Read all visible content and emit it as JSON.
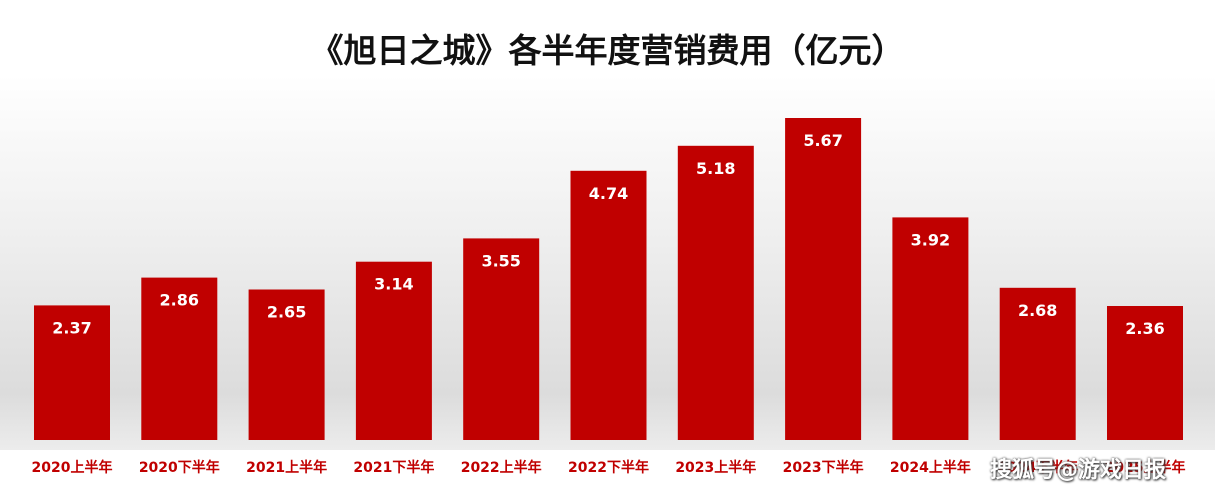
{
  "chart_data": {
    "type": "bar",
    "title": "《旭日之城》各半年度营销费用（亿元）",
    "categories": [
      "2020上半年",
      "2020下半年",
      "2021上半年",
      "2021下半年",
      "2022上半年",
      "2022下半年",
      "2023上半年",
      "2023下半年",
      "2024上半年",
      "2024下半年",
      "2025上半年"
    ],
    "values": [
      2.37,
      2.86,
      2.65,
      3.14,
      3.55,
      4.74,
      5.18,
      5.67,
      3.92,
      2.68,
      2.36
    ],
    "xlabel": "",
    "ylabel": "",
    "ylim": [
      0,
      5.67
    ],
    "grid": false,
    "bar_color": "#c00000",
    "label_color": "#ffffff",
    "category_label_color": "#c00000"
  },
  "watermark": "搜狐号@游戏日报"
}
